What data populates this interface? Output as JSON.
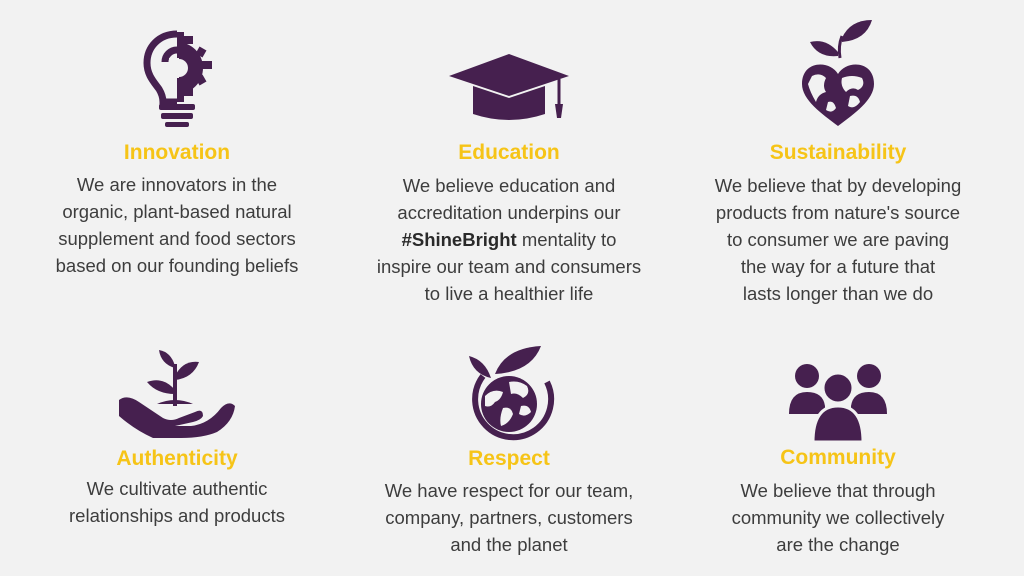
{
  "colors": {
    "icon": "#46204f",
    "title": "#f6c417",
    "text": "#3d3d3d",
    "background": "#f2f2f2"
  },
  "values": [
    {
      "icon": "lightbulb-gear-icon",
      "title": "Innovation",
      "lines": [
        "We are innovators in the",
        "organic, plant-based natural",
        "supplement and food sectors",
        "based on our founding beliefs"
      ]
    },
    {
      "icon": "graduation-cap-icon",
      "title": "Education",
      "lines": [
        "We believe education and",
        "accreditation underpins our",
        "mentality to",
        "inspire our team and consumers",
        "to live a healthier life"
      ],
      "emphasis": "#ShineBright"
    },
    {
      "icon": "heart-earth-sprout-icon",
      "title": "Sustainability",
      "lines": [
        "We believe that by developing",
        "products from nature's source",
        "to consumer we are paving",
        "the way for a future that",
        "lasts longer than we do"
      ]
    },
    {
      "icon": "hand-sprout-icon",
      "title": "Authenticity",
      "lines": [
        "We cultivate authentic",
        "relationships and products"
      ]
    },
    {
      "icon": "globe-leaf-icon",
      "title": "Respect",
      "lines": [
        "We have respect for our team,",
        "company, partners, customers",
        "and the planet"
      ]
    },
    {
      "icon": "people-group-icon",
      "title": "Community",
      "lines": [
        "We believe that through",
        "community we collectively",
        "are the change"
      ]
    }
  ]
}
